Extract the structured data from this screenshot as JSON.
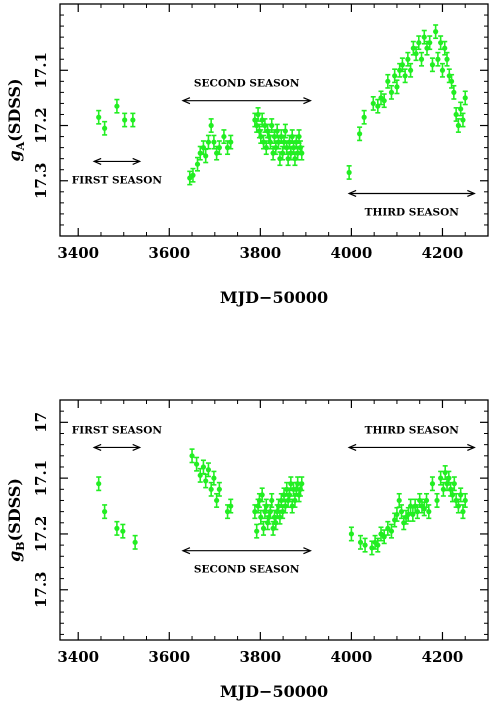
{
  "figure": {
    "colors": {
      "points": "#22ee22",
      "axes": "#000000",
      "background": "#ffffff"
    }
  },
  "chart_data": [
    {
      "type": "scatter",
      "id": "panel-A",
      "xlabel": "MJD−50000",
      "ylabel": {
        "main": "g",
        "sub": "A",
        "tail": "(SDSS)"
      },
      "xlim": [
        3360,
        4300
      ],
      "ylim": [
        17.4,
        16.98
      ],
      "y_inverted": true,
      "xticks": [
        3400,
        3600,
        3800,
        4000,
        4200
      ],
      "yticks": [
        17.1,
        17.2,
        17.3
      ],
      "ytick_labels": [
        "17.1",
        "17.2",
        "17.3"
      ],
      "error_bar": 0.012,
      "annotations": [
        {
          "text": "FIRST SEASON",
          "arrow_x": [
            3435,
            3535
          ],
          "arrow_y": 17.265,
          "text_pos": "below"
        },
        {
          "text": "SECOND SEASON",
          "arrow_x": [
            3630,
            3910
          ],
          "arrow_y": 17.155,
          "text_pos": "above"
        },
        {
          "text": "THIRD SEASON",
          "arrow_x": [
            3995,
            4270
          ],
          "arrow_y": 17.323,
          "text_pos": "below"
        }
      ],
      "series": [
        {
          "x": [
            3445,
            3458,
            3485,
            3502,
            3520,
            3645,
            3652,
            3662,
            3668,
            3675,
            3680,
            3686,
            3692,
            3698,
            3704,
            3710,
            3720,
            3728,
            3735,
            3788,
            3792,
            3795,
            3798,
            3801,
            3804,
            3807,
            3810,
            3813,
            3816,
            3819,
            3822,
            3825,
            3828,
            3831,
            3834,
            3837,
            3840,
            3843,
            3846,
            3849,
            3852,
            3855,
            3858,
            3861,
            3864,
            3867,
            3870,
            3873,
            3876,
            3879,
            3882,
            3885,
            3888,
            3891,
            3995,
            4018,
            4028,
            4048,
            4058,
            4065,
            4072,
            4080,
            4088,
            4095,
            4100,
            4106,
            4112,
            4118,
            4124,
            4130,
            4136,
            4142,
            4148,
            4154,
            4160,
            4166,
            4172,
            4178,
            4185,
            4190,
            4196,
            4200,
            4205,
            4210,
            4215,
            4220,
            4225,
            4230,
            4235,
            4240,
            4245,
            4250
          ],
          "y": [
            17.185,
            17.205,
            17.165,
            17.19,
            17.19,
            17.295,
            17.29,
            17.27,
            17.25,
            17.24,
            17.255,
            17.23,
            17.2,
            17.23,
            17.25,
            17.24,
            17.22,
            17.24,
            17.23,
            17.19,
            17.2,
            17.18,
            17.21,
            17.22,
            17.19,
            17.23,
            17.2,
            17.24,
            17.21,
            17.22,
            17.23,
            17.2,
            17.25,
            17.22,
            17.24,
            17.21,
            17.23,
            17.26,
            17.22,
            17.25,
            17.23,
            17.21,
            17.24,
            17.26,
            17.23,
            17.25,
            17.22,
            17.24,
            17.26,
            17.23,
            17.25,
            17.22,
            17.24,
            17.25,
            17.285,
            17.215,
            17.185,
            17.16,
            17.165,
            17.15,
            17.155,
            17.12,
            17.14,
            17.11,
            17.13,
            17.1,
            17.09,
            17.11,
            17.08,
            17.1,
            17.06,
            17.07,
            17.05,
            17.08,
            17.04,
            17.06,
            17.05,
            17.09,
            17.03,
            17.08,
            17.05,
            17.1,
            17.06,
            17.08,
            17.11,
            17.12,
            17.14,
            17.18,
            17.2,
            17.17,
            17.19,
            17.15
          ]
        }
      ]
    },
    {
      "type": "scatter",
      "id": "panel-B",
      "xlabel": "MJD−50000",
      "ylabel": {
        "main": "g",
        "sub": "B",
        "tail": "(SDSS)"
      },
      "xlim": [
        3360,
        4300
      ],
      "ylim": [
        17.39,
        16.96
      ],
      "y_inverted": true,
      "xticks": [
        3400,
        3600,
        3800,
        4000,
        4200
      ],
      "yticks": [
        17.0,
        17.1,
        17.2,
        17.3
      ],
      "ytick_labels": [
        "17",
        "17.1",
        "17.2",
        "17.3"
      ],
      "error_bar": 0.012,
      "annotations": [
        {
          "text": "FIRST SEASON",
          "arrow_x": [
            3435,
            3535
          ],
          "arrow_y": 17.045,
          "text_pos": "above"
        },
        {
          "text": "SECOND SEASON",
          "arrow_x": [
            3630,
            3910
          ],
          "arrow_y": 17.23,
          "text_pos": "below"
        },
        {
          "text": "THIRD SEASON",
          "arrow_x": [
            3995,
            4270
          ],
          "arrow_y": 17.045,
          "text_pos": "above"
        }
      ],
      "series": [
        {
          "x": [
            3445,
            3458,
            3485,
            3498,
            3525,
            3650,
            3660,
            3668,
            3675,
            3680,
            3686,
            3692,
            3698,
            3704,
            3710,
            3728,
            3735,
            3788,
            3792,
            3795,
            3798,
            3801,
            3804,
            3807,
            3810,
            3813,
            3816,
            3819,
            3822,
            3825,
            3828,
            3831,
            3834,
            3837,
            3840,
            3843,
            3846,
            3849,
            3852,
            3855,
            3858,
            3861,
            3864,
            3867,
            3870,
            3873,
            3876,
            3879,
            3882,
            3885,
            3888,
            3891,
            4000,
            4020,
            4030,
            4045,
            4052,
            4058,
            4065,
            4072,
            4080,
            4088,
            4095,
            4100,
            4105,
            4110,
            4115,
            4120,
            4125,
            4130,
            4135,
            4140,
            4145,
            4150,
            4155,
            4160,
            4165,
            4170,
            4178,
            4188,
            4196,
            4202,
            4206,
            4210,
            4214,
            4218,
            4222,
            4226,
            4230,
            4235,
            4240,
            4245,
            4250
          ],
          "y": [
            17.11,
            17.16,
            17.19,
            17.195,
            17.215,
            17.06,
            17.075,
            17.095,
            17.08,
            17.105,
            17.085,
            17.12,
            17.1,
            17.14,
            17.12,
            17.16,
            17.15,
            17.16,
            17.195,
            17.15,
            17.14,
            17.17,
            17.13,
            17.19,
            17.16,
            17.15,
            17.18,
            17.17,
            17.16,
            17.14,
            17.19,
            17.17,
            17.18,
            17.16,
            17.15,
            17.17,
            17.14,
            17.16,
            17.13,
            17.15,
            17.12,
            17.14,
            17.13,
            17.11,
            17.15,
            17.12,
            17.14,
            17.12,
            17.11,
            17.13,
            17.12,
            17.11,
            17.2,
            17.215,
            17.22,
            17.225,
            17.215,
            17.22,
            17.2,
            17.205,
            17.19,
            17.195,
            17.175,
            17.165,
            17.14,
            17.16,
            17.18,
            17.17,
            17.165,
            17.15,
            17.165,
            17.15,
            17.16,
            17.14,
            17.15,
            17.155,
            17.14,
            17.16,
            17.11,
            17.14,
            17.1,
            17.12,
            17.09,
            17.11,
            17.1,
            17.12,
            17.13,
            17.11,
            17.14,
            17.15,
            17.13,
            17.16,
            17.14
          ]
        }
      ]
    }
  ]
}
